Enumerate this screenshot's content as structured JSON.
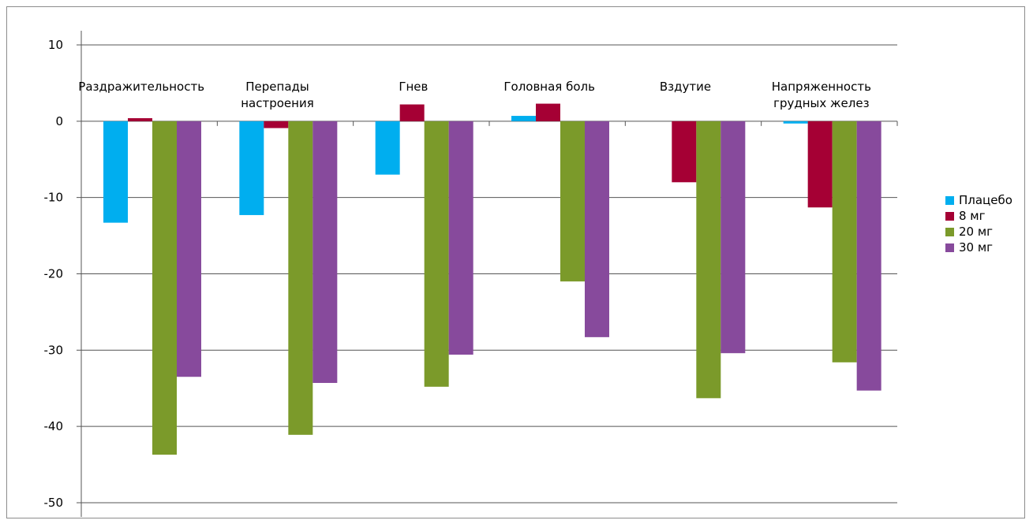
{
  "chart_data": {
    "type": "bar",
    "categories": [
      [
        "Раздражительность"
      ],
      [
        "Перепады",
        "настроения"
      ],
      [
        "Гнев"
      ],
      [
        "Головная боль"
      ],
      [
        "Вздутие"
      ],
      [
        "Напряженность",
        "грудных желез"
      ]
    ],
    "series": [
      {
        "name": "Плацебо",
        "color": "#00aeef",
        "values": [
          -13.3,
          -12.3,
          -7.0,
          0.7,
          0,
          -0.3
        ]
      },
      {
        "name": "8 мг",
        "color": "#a50034",
        "values": [
          0.4,
          -0.9,
          2.2,
          2.3,
          -8.0,
          -11.3
        ]
      },
      {
        "name": "20 мг",
        "color": "#7b9a2a",
        "values": [
          -43.7,
          -41.1,
          -34.8,
          -21.0,
          -36.3,
          -31.6
        ]
      },
      {
        "name": "30 мг",
        "color": "#874a9c",
        "values": [
          -33.5,
          -34.3,
          -30.6,
          -28.3,
          -30.4,
          -35.3
        ]
      }
    ],
    "yticks": [
      10,
      0,
      -10,
      -20,
      -30,
      -40,
      -50
    ],
    "ylim": [
      -50,
      10
    ],
    "grid": true,
    "legend_position": "right",
    "title": "",
    "xlabel": "",
    "ylabel": ""
  }
}
